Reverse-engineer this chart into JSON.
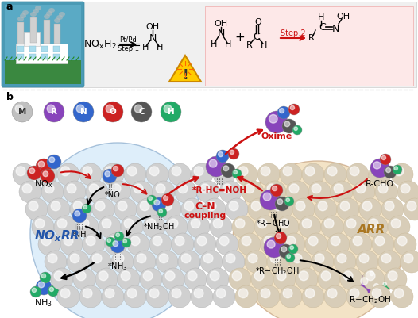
{
  "fig_width": 5.26,
  "fig_height": 4.01,
  "dpi": 100,
  "sphere_color_M": "#c8c8c8",
  "sphere_color_R": "#8844bb",
  "sphere_color_N": "#3366cc",
  "sphere_color_O": "#cc2222",
  "sphere_color_C": "#555555",
  "sphere_color_H": "#22aa66",
  "metal_color": "#d0d0d0",
  "metal_color_warm": "#d8cdb8",
  "blue_region_color": "#d0e8f8",
  "orange_region_color": "#f0ddb8",
  "arrow_red": "#cc1111",
  "arrow_black": "#111111",
  "legend_labels": [
    "M",
    "R",
    "N",
    "O",
    "C",
    "H"
  ],
  "legend_colors": [
    "#c0c0c0",
    "#8844bb",
    "#3366cc",
    "#cc2222",
    "#555555",
    "#22aa66"
  ],
  "legend_text_colors": [
    "#333333",
    "#ffffff",
    "#ffffff",
    "#ffffff",
    "#ffffff",
    "#ffffff"
  ]
}
